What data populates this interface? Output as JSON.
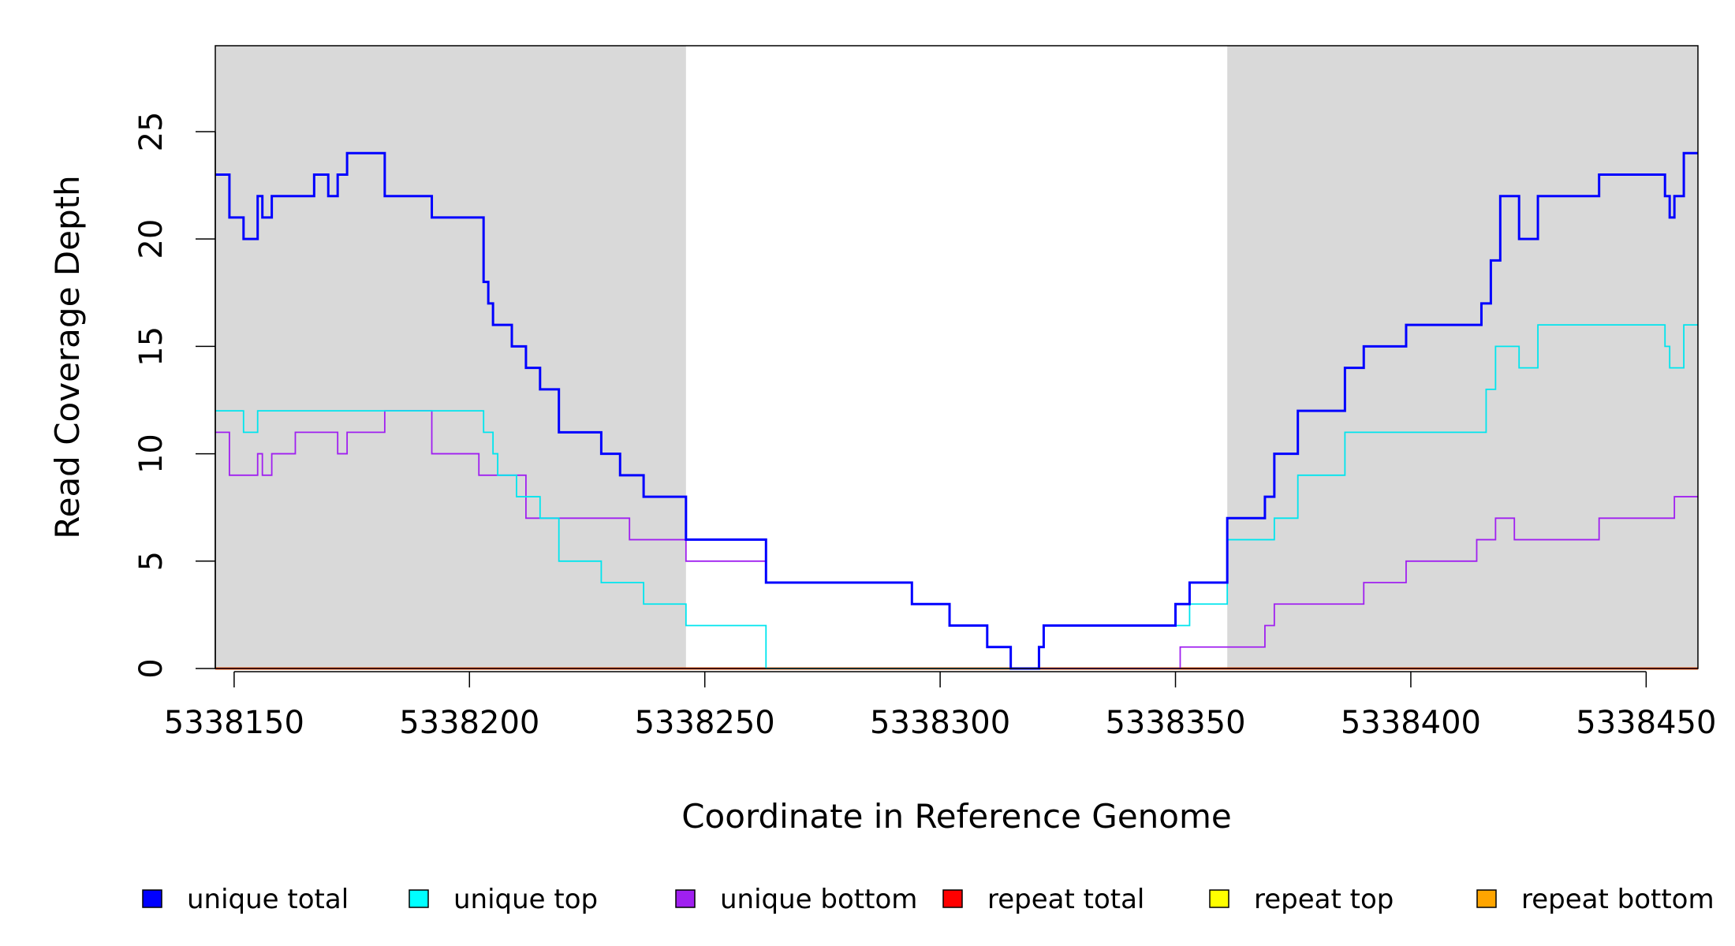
{
  "chart_data": {
    "type": "line",
    "step": true,
    "title": "",
    "xlabel": "Coordinate in Reference Genome",
    "ylabel": "Read Coverage Depth",
    "xlim": [
      5338146,
      5338461
    ],
    "ylim": [
      0,
      29
    ],
    "x_ticks": [
      5338150,
      5338200,
      5338250,
      5338300,
      5338350,
      5338400,
      5338450
    ],
    "y_ticks": [
      0,
      5,
      10,
      15,
      20,
      25
    ],
    "x_tick_labels": [
      "5338150",
      "5338200",
      "5338250",
      "5338300",
      "5338350",
      "5338400",
      "5338450"
    ],
    "y_tick_labels": [
      "0",
      "5",
      "10",
      "15",
      "20",
      "25"
    ],
    "shaded_regions": [
      {
        "x_start": 5338146,
        "x_end": 5338246,
        "color": "#d9d9d9"
      },
      {
        "x_start": 5338361,
        "x_end": 5338461,
        "color": "#d9d9d9"
      }
    ],
    "grid": false,
    "legend_position": "bottom",
    "series": [
      {
        "name": "unique total",
        "color": "#0000ff",
        "x": [
          5338146,
          5338149,
          5338152,
          5338155,
          5338156,
          5338158,
          5338161,
          5338167,
          5338170,
          5338172,
          5338174,
          5338182,
          5338192,
          5338203,
          5338204,
          5338205,
          5338209,
          5338212,
          5338215,
          5338219,
          5338228,
          5338232,
          5338237,
          5338246,
          5338263,
          5338294,
          5338302,
          5338310,
          5338315,
          5338321,
          5338322,
          5338323,
          5338350,
          5338353,
          5338361,
          5338369,
          5338371,
          5338376,
          5338386,
          5338390,
          5338399,
          5338415,
          5338417,
          5338419,
          5338423,
          5338427,
          5338440,
          5338454,
          5338455,
          5338456,
          5338458,
          5338461
        ],
        "values": [
          23,
          21,
          20,
          22,
          21,
          22,
          22,
          23,
          22,
          23,
          24,
          22,
          21,
          18,
          17,
          16,
          15,
          14,
          13,
          11,
          10,
          9,
          8,
          6,
          4,
          3,
          2,
          1,
          0,
          1,
          2,
          2,
          3,
          4,
          7,
          8,
          10,
          12,
          14,
          15,
          16,
          17,
          19,
          22,
          20,
          22,
          23,
          22,
          21,
          22,
          24,
          24
        ]
      },
      {
        "name": "unique top",
        "color": "#00e5ee",
        "x": [
          5338146,
          5338152,
          5338155,
          5338203,
          5338205,
          5338206,
          5338210,
          5338215,
          5338219,
          5338228,
          5338237,
          5338246,
          5338263,
          5338321,
          5338322,
          5338323,
          5338353,
          5338361,
          5338371,
          5338376,
          5338386,
          5338416,
          5338418,
          5338423,
          5338427,
          5338454,
          5338455,
          5338458,
          5338461
        ],
        "values": [
          12,
          11,
          12,
          11,
          10,
          9,
          8,
          7,
          5,
          4,
          3,
          2,
          0,
          1,
          2,
          2,
          3,
          6,
          7,
          9,
          11,
          13,
          15,
          14,
          16,
          15,
          14,
          16,
          16
        ]
      },
      {
        "name": "unique bottom",
        "color": "#a020f0",
        "x": [
          5338146,
          5338149,
          5338155,
          5338156,
          5338158,
          5338163,
          5338172,
          5338174,
          5338182,
          5338192,
          5338202,
          5338212,
          5338234,
          5338246,
          5338263,
          5338294,
          5338302,
          5338310,
          5338315,
          5338351,
          5338369,
          5338371,
          5338390,
          5338399,
          5338414,
          5338418,
          5338422,
          5338440,
          5338456,
          5338461
        ],
        "values": [
          11,
          9,
          10,
          9,
          10,
          11,
          10,
          11,
          12,
          10,
          9,
          7,
          6,
          5,
          4,
          3,
          2,
          1,
          0,
          1,
          2,
          3,
          4,
          5,
          6,
          7,
          6,
          7,
          8,
          8
        ]
      },
      {
        "name": "repeat total",
        "color": "#ff0000",
        "x": [
          5338146,
          5338461
        ],
        "values": [
          0,
          0
        ]
      },
      {
        "name": "repeat top",
        "color": "#ffff00",
        "x": [
          5338146,
          5338461
        ],
        "values": [
          0,
          0
        ]
      },
      {
        "name": "repeat bottom",
        "color": "#ffa500",
        "x": [
          5338146,
          5338461
        ],
        "values": [
          0,
          0
        ]
      }
    ]
  },
  "legend": {
    "items": [
      {
        "label": "unique total",
        "color": "#0000ff"
      },
      {
        "label": "unique top",
        "color": "#00ffff"
      },
      {
        "label": "unique bottom",
        "color": "#a020f0"
      },
      {
        "label": "repeat total",
        "color": "#ff0000"
      },
      {
        "label": "repeat top",
        "color": "#ffff00"
      },
      {
        "label": "repeat bottom",
        "color": "#ffa500"
      }
    ]
  }
}
